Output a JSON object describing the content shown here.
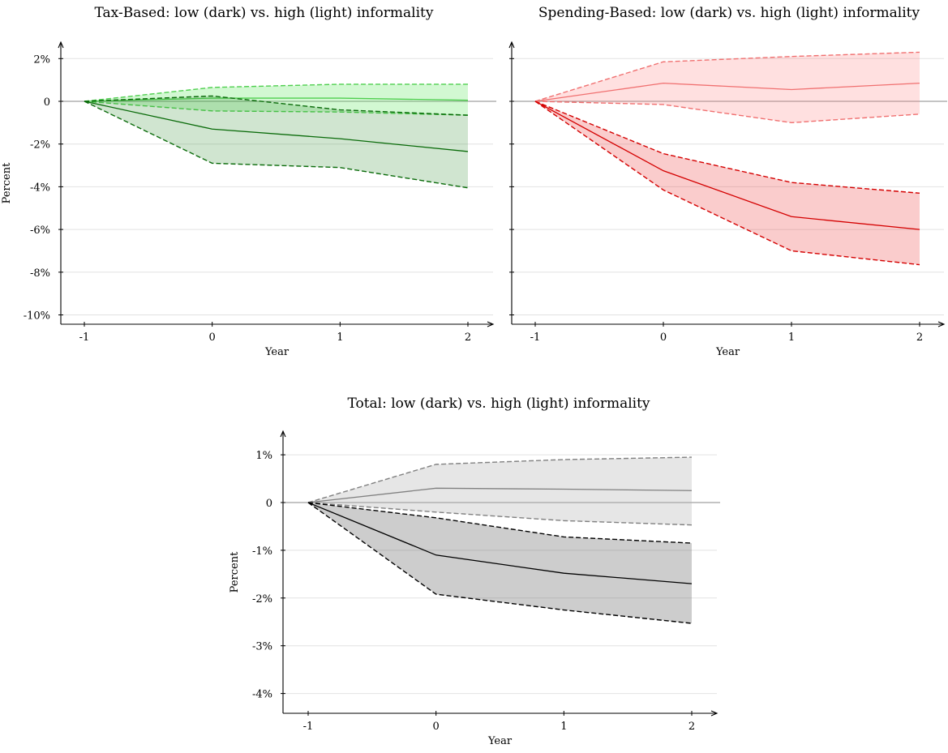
{
  "chart_data": [
    {
      "type": "line",
      "title": "Tax-Based: low (dark) vs. high (light) informality",
      "xlabel": "Year",
      "ylabel": "Percent",
      "x": [
        -1,
        0,
        1,
        2
      ],
      "xlim": [
        -1.2,
        2.2
      ],
      "ylim": [
        -10.4,
        2.8
      ],
      "yticks": [
        2,
        0,
        -2,
        -4,
        -6,
        -8,
        -10
      ],
      "ytick_labels": [
        "2%",
        "0",
        "-2%",
        "-4%",
        "-6%",
        "-8%",
        "-10%"
      ],
      "xtick_labels": [
        "-1",
        "0",
        "1",
        "2"
      ],
      "grid": true,
      "series": [
        {
          "point_estimate": [
            0,
            0.15,
            0.15,
            0.05
          ],
          "lower": [
            0,
            -0.45,
            -0.5,
            -0.65
          ],
          "upper": [
            0,
            0.65,
            0.8,
            0.8
          ],
          "line_color": "#4fcf4f",
          "fill_color": "#5ee65e",
          "fill_opacity": 0.28
        },
        {
          "point_estimate": [
            0,
            -1.3,
            -1.75,
            -2.35
          ],
          "lower": [
            0,
            -2.9,
            -3.1,
            -4.05
          ],
          "upper": [
            0,
            0.25,
            -0.4,
            -0.65
          ],
          "line_color": "#0a6b0a",
          "fill_color": "#2a8a2a",
          "fill_opacity": 0.22
        }
      ]
    },
    {
      "type": "line",
      "title": "Spending-Based: low (dark) vs. high (light) informality",
      "xlabel": "Year",
      "ylabel": "",
      "x": [
        -1,
        0,
        1,
        2
      ],
      "xlim": [
        -1.2,
        2.2
      ],
      "ylim": [
        -10.4,
        2.8
      ],
      "yticks": [
        2,
        0,
        -2,
        -4,
        -6,
        -8,
        -10
      ],
      "ytick_labels": [],
      "xtick_labels": [
        "-1",
        "0",
        "1",
        "2"
      ],
      "grid": true,
      "series": [
        {
          "point_estimate": [
            0,
            0.85,
            0.55,
            0.85
          ],
          "lower": [
            0,
            -0.15,
            -1.0,
            -0.6
          ],
          "upper": [
            0,
            1.85,
            2.1,
            2.3
          ],
          "line_color": "#f07070",
          "fill_color": "#fd7d7d",
          "fill_opacity": 0.24
        },
        {
          "point_estimate": [
            0,
            -3.25,
            -5.4,
            -6.0
          ],
          "lower": [
            0,
            -4.15,
            -7.0,
            -7.65
          ],
          "upper": [
            0,
            -2.45,
            -3.8,
            -4.3
          ],
          "line_color": "#d40000",
          "fill_color": "#ec3a3a",
          "fill_opacity": 0.26
        }
      ]
    },
    {
      "type": "line",
      "title": "Total: low (dark) vs. high (light) informality",
      "xlabel": "Year",
      "ylabel": "Percent",
      "x": [
        -1,
        0,
        1,
        2
      ],
      "xlim": [
        -1.2,
        2.2
      ],
      "ylim": [
        -4.4,
        1.5
      ],
      "yticks": [
        1,
        0,
        -1,
        -2,
        -3,
        -4
      ],
      "ytick_labels": [
        "1%",
        "0",
        "-1%",
        "-2%",
        "-3%",
        "-4%"
      ],
      "xtick_labels": [
        "-1",
        "0",
        "1",
        "2"
      ],
      "grid": true,
      "series": [
        {
          "point_estimate": [
            0,
            0.3,
            0.28,
            0.25
          ],
          "lower": [
            0,
            -0.2,
            -0.38,
            -0.47
          ],
          "upper": [
            0,
            0.8,
            0.9,
            0.95
          ],
          "line_color": "#808080",
          "fill_color": "#b0b0b0",
          "fill_opacity": 0.32
        },
        {
          "point_estimate": [
            0,
            -1.1,
            -1.48,
            -1.7
          ],
          "lower": [
            0,
            -1.92,
            -2.25,
            -2.53
          ],
          "upper": [
            0,
            -0.32,
            -0.72,
            -0.85
          ],
          "line_color": "#000000",
          "fill_color": "#5a5a5a",
          "fill_opacity": 0.3
        }
      ]
    }
  ]
}
